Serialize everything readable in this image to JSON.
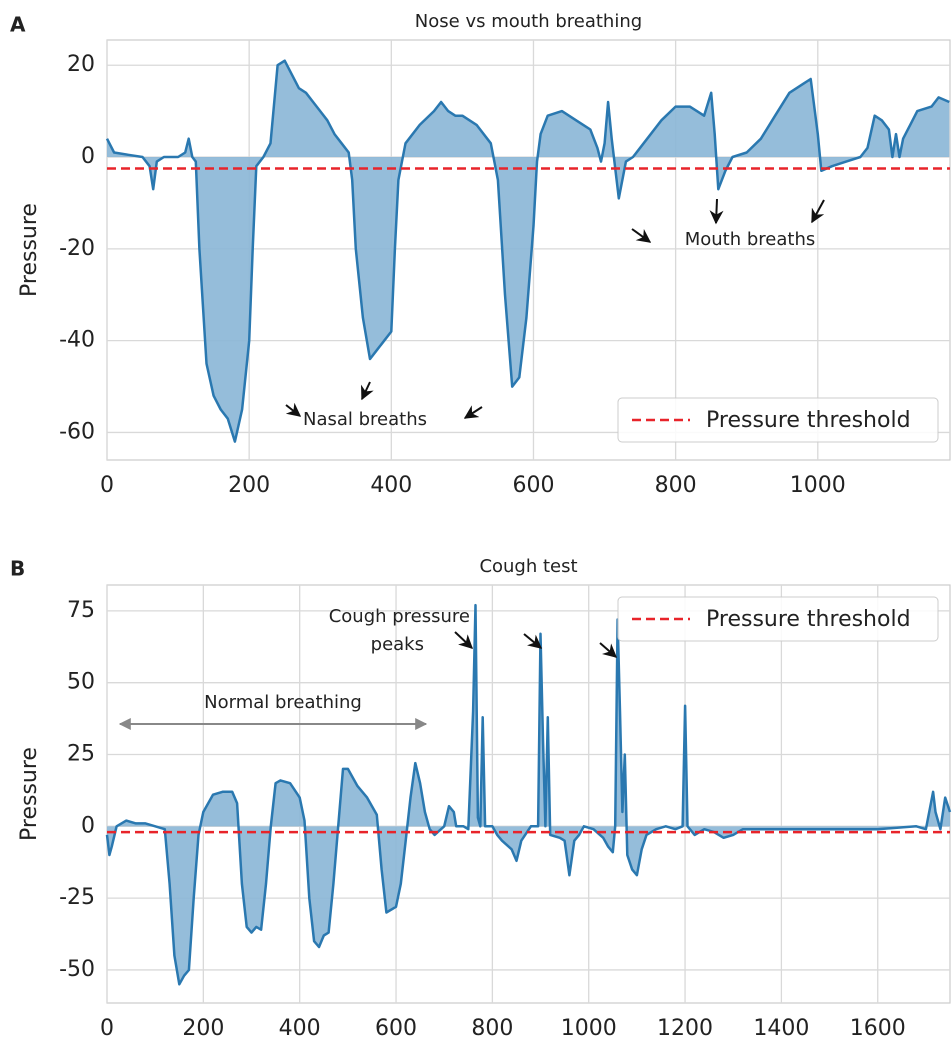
{
  "chart_data": [
    {
      "type": "line",
      "panel_label": "A",
      "title": "Nose vs mouth breathing",
      "ylabel": "Pressure",
      "x": [
        0,
        10,
        30,
        50,
        60,
        65,
        70,
        80,
        100,
        110,
        115,
        120,
        125,
        130,
        140,
        150,
        160,
        170,
        180,
        190,
        200,
        205,
        210,
        220,
        230,
        240,
        250,
        260,
        270,
        280,
        290,
        300,
        310,
        320,
        330,
        340,
        345,
        350,
        360,
        370,
        380,
        390,
        400,
        405,
        410,
        420,
        440,
        460,
        470,
        480,
        490,
        500,
        520,
        540,
        550,
        560,
        570,
        580,
        590,
        600,
        605,
        610,
        620,
        640,
        660,
        680,
        690,
        695,
        700,
        705,
        710,
        720,
        730,
        740,
        760,
        780,
        800,
        820,
        840,
        850,
        855,
        860,
        870,
        880,
        900,
        920,
        940,
        960,
        980,
        990,
        1000,
        1005,
        1020,
        1040,
        1060,
        1070,
        1080,
        1090,
        1100,
        1105,
        1110,
        1115,
        1120,
        1130,
        1140,
        1160,
        1170,
        1185
      ],
      "series": [
        {
          "color": "#2a78b0",
          "fill": "#8ab6d6",
          "values": [
            4,
            1,
            0.5,
            0,
            -2,
            -7,
            -1,
            0,
            0,
            1,
            4,
            0,
            -1,
            -20,
            -45,
            -52,
            -55,
            -57,
            -62,
            -55,
            -40,
            -20,
            -2,
            0,
            3,
            20,
            21,
            18,
            15,
            14,
            12,
            10,
            8,
            5,
            3,
            1,
            -5,
            -20,
            -35,
            -44,
            -42,
            -40,
            -38,
            -20,
            -5,
            3,
            7,
            10,
            12,
            10,
            9,
            9,
            7,
            3,
            -5,
            -30,
            -50,
            -48,
            -35,
            -15,
            -1,
            5,
            9,
            10,
            8,
            6,
            2,
            -1,
            3,
            12,
            4,
            -9,
            -1,
            0,
            4,
            8,
            11,
            11,
            9,
            14,
            5,
            -7,
            -3,
            0,
            1,
            4,
            9,
            14,
            16,
            17,
            5,
            -3,
            -2,
            -1,
            0,
            2,
            9,
            8,
            6,
            0,
            5,
            0,
            4,
            7,
            10,
            11,
            13,
            12
          ]
        }
      ],
      "threshold": {
        "name": "Pressure threshold",
        "value": -2.5,
        "color": "#e8242a"
      },
      "legend_loc": "lower right",
      "annotations": [
        {
          "text": "Nasal breaths"
        },
        {
          "text": "Mouth breaths"
        }
      ],
      "xlim": [
        0,
        1186
      ],
      "ylim": [
        -66,
        25.5
      ],
      "xticks": [
        0,
        200,
        400,
        600,
        800,
        1000
      ],
      "yticks": [
        -60,
        -40,
        -20,
        0,
        20
      ],
      "grid": true
    },
    {
      "type": "line",
      "panel_label": "B",
      "title": "Cough test",
      "ylabel": "Pressure",
      "x": [
        0,
        5,
        10,
        20,
        40,
        60,
        80,
        100,
        120,
        130,
        140,
        150,
        160,
        170,
        180,
        190,
        200,
        220,
        240,
        260,
        270,
        280,
        290,
        300,
        310,
        320,
        330,
        340,
        350,
        360,
        380,
        400,
        410,
        420,
        430,
        440,
        450,
        460,
        470,
        480,
        490,
        500,
        520,
        540,
        560,
        570,
        580,
        600,
        610,
        620,
        630,
        640,
        650,
        660,
        670,
        680,
        700,
        710,
        720,
        725,
        740,
        750,
        760,
        765,
        770,
        775,
        780,
        785,
        800,
        810,
        820,
        840,
        850,
        860,
        880,
        895,
        900,
        905,
        910,
        915,
        920,
        940,
        950,
        960,
        970,
        980,
        990,
        1010,
        1030,
        1040,
        1050,
        1055,
        1060,
        1065,
        1070,
        1075,
        1080,
        1090,
        1100,
        1110,
        1120,
        1140,
        1160,
        1180,
        1195,
        1200,
        1205,
        1220,
        1240,
        1260,
        1280,
        1300,
        1320,
        1360,
        1400,
        1500,
        1600,
        1680,
        1700,
        1715,
        1720,
        1730,
        1740,
        1750
      ],
      "series": [
        {
          "color": "#2a78b0",
          "fill": "#8ab6d6",
          "values": [
            -3,
            -10,
            -7,
            0,
            2,
            1,
            1,
            0,
            -1,
            -20,
            -45,
            -55,
            -52,
            -50,
            -25,
            -3,
            5,
            11,
            12,
            12,
            8,
            -20,
            -35,
            -37,
            -35,
            -36,
            -20,
            0,
            15,
            16,
            15,
            10,
            2,
            -25,
            -40,
            -42,
            -38,
            -37,
            -20,
            0,
            20,
            20,
            14,
            10,
            4,
            -15,
            -30,
            -28,
            -20,
            -5,
            10,
            22,
            15,
            5,
            -1,
            -3,
            0,
            7,
            5,
            0,
            0,
            -1,
            40,
            77,
            3,
            0,
            38,
            0,
            0,
            -3,
            -5,
            -8,
            -12,
            -5,
            0,
            0,
            67,
            30,
            0,
            38,
            -3,
            -4,
            -5,
            -17,
            -5,
            -3,
            0,
            -1,
            -4,
            -7,
            -9,
            0,
            72,
            40,
            5,
            25,
            -10,
            -15,
            -17,
            -8,
            -3,
            -1,
            0,
            -1,
            0,
            42,
            0,
            -3,
            -1,
            -2,
            -4,
            -3,
            -1,
            -1,
            -1,
            -1,
            -1,
            0,
            -1,
            12,
            5,
            -1,
            10,
            5
          ]
        }
      ],
      "threshold": {
        "name": "Pressure threshold",
        "value": -2,
        "color": "#e8242a"
      },
      "legend_loc": "upper right",
      "annotations": [
        {
          "text": "Cough pressure"
        },
        {
          "text": "peaks"
        },
        {
          "text": "Normal breathing"
        }
      ],
      "xlim": [
        0,
        1750
      ],
      "ylim": [
        -61.5,
        84
      ],
      "xticks": [
        0,
        200,
        400,
        600,
        800,
        1000,
        1200,
        1400,
        1600
      ],
      "yticks": [
        -50,
        -25,
        0,
        25,
        50,
        75
      ],
      "grid": true
    }
  ]
}
